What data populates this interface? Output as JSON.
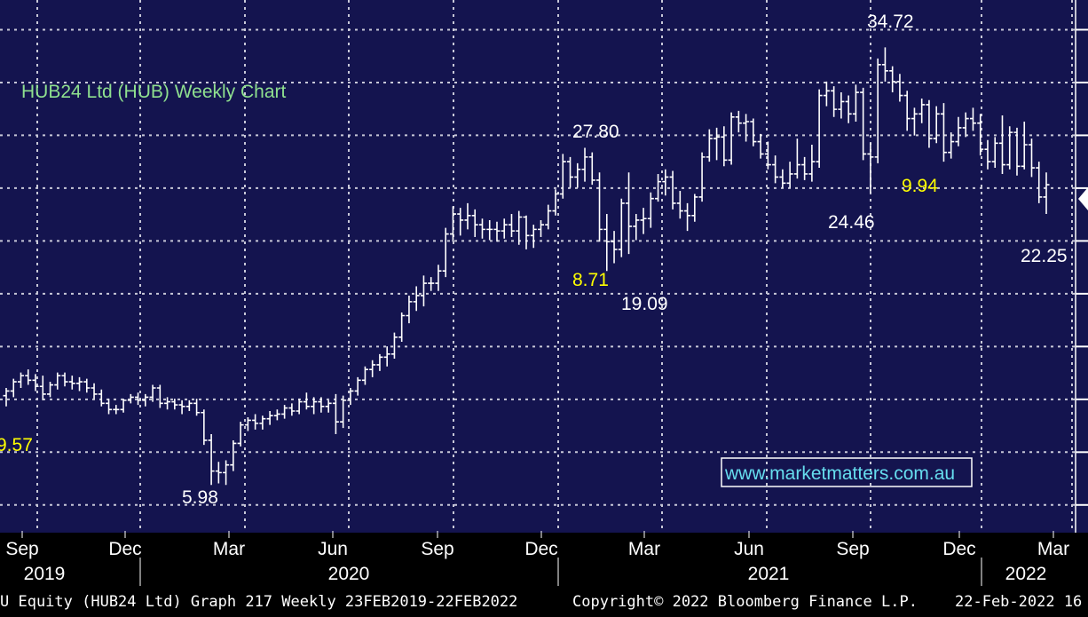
{
  "chart_data": {
    "type": "ohlc",
    "title": "HUB24 Ltd (HUB) Weekly Chart",
    "x_axis": {
      "months": [
        "Sep",
        "Dec",
        "Mar",
        "Jun",
        "Sep",
        "Dec",
        "Mar",
        "Jun",
        "Sep",
        "Dec",
        "Mar"
      ],
      "years": [
        "2019",
        "2020",
        "2021",
        "2022"
      ]
    },
    "y_axis": {
      "range": [
        3.2,
        37.8
      ],
      "gridlines": [
        5,
        8.43,
        11.86,
        15.29,
        18.72,
        22.15,
        25.58,
        29.01,
        32.44,
        35.87
      ],
      "labels_visible": false
    },
    "grid": true,
    "series": [
      {
        "ohlc": [
          [
            12.1,
            12.6,
            11.4,
            12.4
          ],
          [
            12.4,
            13.2,
            12.0,
            13.0
          ],
          [
            13.0,
            13.6,
            12.6,
            13.4
          ],
          [
            13.4,
            13.8,
            12.8,
            13.1
          ],
          [
            13.1,
            13.5,
            12.4,
            12.7
          ],
          [
            12.7,
            13.4,
            11.8,
            12.2
          ],
          [
            12.2,
            13.0,
            12.0,
            12.8
          ],
          [
            12.8,
            13.6,
            12.5,
            13.4
          ],
          [
            13.4,
            13.6,
            12.7,
            13.0
          ],
          [
            13.0,
            13.4,
            12.5,
            12.9
          ],
          [
            12.9,
            13.3,
            12.4,
            13.0
          ],
          [
            13.0,
            13.2,
            12.3,
            12.6
          ],
          [
            12.6,
            12.9,
            11.9,
            12.2
          ],
          [
            12.2,
            12.5,
            11.4,
            11.6
          ],
          [
            11.6,
            11.9,
            10.9,
            11.2
          ],
          [
            11.2,
            11.5,
            10.9,
            11.2
          ],
          [
            11.2,
            11.9,
            11.0,
            11.8
          ],
          [
            11.8,
            12.2,
            11.6,
            12.0
          ],
          [
            12.0,
            12.3,
            11.5,
            11.8
          ],
          [
            11.8,
            12.2,
            11.4,
            12.0
          ],
          [
            12.0,
            12.8,
            11.7,
            12.6
          ],
          [
            12.6,
            12.8,
            11.3,
            11.6
          ],
          [
            11.6,
            12.0,
            11.2,
            11.7
          ],
          [
            11.7,
            11.9,
            11.2,
            11.5
          ],
          [
            11.5,
            11.8,
            10.9,
            11.4
          ],
          [
            11.4,
            11.8,
            11.1,
            11.6
          ],
          [
            11.6,
            11.9,
            10.8,
            11.0
          ],
          [
            11.0,
            11.2,
            8.9,
            9.2
          ],
          [
            9.2,
            9.6,
            6.3,
            7.2
          ],
          [
            7.2,
            7.8,
            6.4,
            7.1
          ],
          [
            7.1,
            7.9,
            6.3,
            7.6
          ],
          [
            7.6,
            9.2,
            7.2,
            9.0
          ],
          [
            9.0,
            10.4,
            8.8,
            10.2
          ],
          [
            10.2,
            10.7,
            9.8,
            10.5
          ],
          [
            10.5,
            10.9,
            9.9,
            10.3
          ],
          [
            10.3,
            10.8,
            9.9,
            10.6
          ],
          [
            10.6,
            11.1,
            10.2,
            10.8
          ],
          [
            10.8,
            11.2,
            10.5,
            10.9
          ],
          [
            10.9,
            11.5,
            10.6,
            11.3
          ],
          [
            11.3,
            11.6,
            10.8,
            11.1
          ],
          [
            11.1,
            11.9,
            10.9,
            11.7
          ],
          [
            11.7,
            12.3,
            11.2,
            11.4
          ],
          [
            11.4,
            12.0,
            10.9,
            11.7
          ],
          [
            11.7,
            12.0,
            11.0,
            11.4
          ],
          [
            11.4,
            11.8,
            11.0,
            11.6
          ],
          [
            11.6,
            12.2,
            9.6,
            10.4
          ],
          [
            10.4,
            12.1,
            10.0,
            11.8
          ],
          [
            11.8,
            12.6,
            11.5,
            12.4
          ],
          [
            12.4,
            13.3,
            12.1,
            13.1
          ],
          [
            13.1,
            14.0,
            12.8,
            13.8
          ],
          [
            13.8,
            14.4,
            13.3,
            14.1
          ],
          [
            14.1,
            14.8,
            13.7,
            14.6
          ],
          [
            14.6,
            15.3,
            14.0,
            14.8
          ],
          [
            14.8,
            16.2,
            14.5,
            15.9
          ],
          [
            15.9,
            17.5,
            15.6,
            17.3
          ],
          [
            17.3,
            18.6,
            16.8,
            18.2
          ],
          [
            18.2,
            19.2,
            17.6,
            18.6
          ],
          [
            18.6,
            19.9,
            17.9,
            19.4
          ],
          [
            19.4,
            19.8,
            18.9,
            19.4
          ],
          [
            19.4,
            20.6,
            18.9,
            20.2
          ],
          [
            20.2,
            23.0,
            19.8,
            22.6
          ],
          [
            22.6,
            24.4,
            22.1,
            23.9
          ],
          [
            23.9,
            24.3,
            22.5,
            23.5
          ],
          [
            23.5,
            24.6,
            22.9,
            23.8
          ],
          [
            23.8,
            24.2,
            22.4,
            23.2
          ],
          [
            23.2,
            23.6,
            22.3,
            22.9
          ],
          [
            22.9,
            23.5,
            22.2,
            22.9
          ],
          [
            22.9,
            23.4,
            22.1,
            22.8
          ],
          [
            22.8,
            23.6,
            22.3,
            23.2
          ],
          [
            23.2,
            23.9,
            22.4,
            22.8
          ],
          [
            22.8,
            24.1,
            21.9,
            23.7
          ],
          [
            23.7,
            23.8,
            21.6,
            22.5
          ],
          [
            22.5,
            23.2,
            21.7,
            22.9
          ],
          [
            22.9,
            23.5,
            22.4,
            23.2
          ],
          [
            23.2,
            24.5,
            22.9,
            24.1
          ],
          [
            24.1,
            25.5,
            23.8,
            25.2
          ],
          [
            25.2,
            27.8,
            24.9,
            27.3
          ],
          [
            27.3,
            27.6,
            25.6,
            26.3
          ],
          [
            26.3,
            27.2,
            25.6,
            26.8
          ],
          [
            26.8,
            28.2,
            26.0,
            27.6
          ],
          [
            27.6,
            27.9,
            25.8,
            26.1
          ],
          [
            26.1,
            26.6,
            22.1,
            22.9
          ],
          [
            22.9,
            23.9,
            20.2,
            22.1
          ],
          [
            22.1,
            22.8,
            20.7,
            21.6
          ],
          [
            21.6,
            24.9,
            21.1,
            24.6
          ],
          [
            24.6,
            26.6,
            21.3,
            23.1
          ],
          [
            23.1,
            23.9,
            22.2,
            23.5
          ],
          [
            23.5,
            24.3,
            22.6,
            23.6
          ],
          [
            23.6,
            25.3,
            23.0,
            24.9
          ],
          [
            24.9,
            26.5,
            24.7,
            26.0
          ],
          [
            26.0,
            26.8,
            25.1,
            26.3
          ],
          [
            26.3,
            26.7,
            24.2,
            24.6
          ],
          [
            24.6,
            25.4,
            23.6,
            24.1
          ],
          [
            24.1,
            24.6,
            22.8,
            23.8
          ],
          [
            23.8,
            25.2,
            23.4,
            25.0
          ],
          [
            25.0,
            27.9,
            24.7,
            27.6
          ],
          [
            27.6,
            29.4,
            27.3,
            28.8
          ],
          [
            28.8,
            29.5,
            27.4,
            28.9
          ],
          [
            28.9,
            29.6,
            27.0,
            27.4
          ],
          [
            27.4,
            30.5,
            27.1,
            30.2
          ],
          [
            30.2,
            30.6,
            29.2,
            29.8
          ],
          [
            29.8,
            30.4,
            28.6,
            29.9
          ],
          [
            29.9,
            30.1,
            28.3,
            28.6
          ],
          [
            28.6,
            29.1,
            27.5,
            27.8
          ],
          [
            27.8,
            28.6,
            26.8,
            27.1
          ],
          [
            27.1,
            27.7,
            25.9,
            26.3
          ],
          [
            26.3,
            26.8,
            25.6,
            25.9
          ],
          [
            25.9,
            27.3,
            25.6,
            26.5
          ],
          [
            26.5,
            28.8,
            26.2,
            27.1
          ],
          [
            27.1,
            27.6,
            26.1,
            26.5
          ],
          [
            26.5,
            28.4,
            26.0,
            27.3
          ],
          [
            27.3,
            32.0,
            26.9,
            31.6
          ],
          [
            31.6,
            32.5,
            30.9,
            31.9
          ],
          [
            31.9,
            32.2,
            30.2,
            30.7
          ],
          [
            30.7,
            31.8,
            30.1,
            31.2
          ],
          [
            31.2,
            31.6,
            29.8,
            30.4
          ],
          [
            30.4,
            32.3,
            29.9,
            31.8
          ],
          [
            31.8,
            32.1,
            27.4,
            27.8
          ],
          [
            27.8,
            28.5,
            25.3,
            27.6
          ],
          [
            27.6,
            34.0,
            27.2,
            33.6
          ],
          [
            33.6,
            34.72,
            32.5,
            33.2
          ],
          [
            33.2,
            33.5,
            31.8,
            32.5
          ],
          [
            32.5,
            33.0,
            31.2,
            31.6
          ],
          [
            31.6,
            31.9,
            29.3,
            30.1
          ],
          [
            30.1,
            30.8,
            29.0,
            30.4
          ],
          [
            30.4,
            31.4,
            29.8,
            31.0
          ],
          [
            31.0,
            31.3,
            28.2,
            28.8
          ],
          [
            28.8,
            30.9,
            28.5,
            30.4
          ],
          [
            30.4,
            31.1,
            27.3,
            27.9
          ],
          [
            27.9,
            29.2,
            27.5,
            28.6
          ],
          [
            28.6,
            30.2,
            28.3,
            29.5
          ],
          [
            29.5,
            30.5,
            28.9,
            30.1
          ],
          [
            30.1,
            30.8,
            29.3,
            29.8
          ],
          [
            29.8,
            30.4,
            27.7,
            28.1
          ],
          [
            28.1,
            28.7,
            26.8,
            27.3
          ],
          [
            27.3,
            28.9,
            26.9,
            28.5
          ],
          [
            28.5,
            30.3,
            26.5,
            27.1
          ],
          [
            27.1,
            29.6,
            26.8,
            29.2
          ],
          [
            29.2,
            29.5,
            26.4,
            27.0
          ],
          [
            27.0,
            29.9,
            26.8,
            28.4
          ],
          [
            28.4,
            28.8,
            26.3,
            26.9
          ],
          [
            26.9,
            27.3,
            24.6,
            25.0
          ],
          [
            25.0,
            26.6,
            23.9,
            25.8
          ]
        ]
      }
    ],
    "annotations": [
      {
        "text": "9.57",
        "color": "#ffff00"
      },
      {
        "text": "5.98",
        "color": "#ffffff"
      },
      {
        "text": "27.80",
        "color": "#ffffff"
      },
      {
        "text": "8.71",
        "color": "#ffff00"
      },
      {
        "text": "19.09",
        "color": "#ffffff"
      },
      {
        "text": "24.46",
        "color": "#ffffff"
      },
      {
        "text": "34.72",
        "color": "#ffffff"
      },
      {
        "text": "9.94",
        "color": "#ffff00"
      },
      {
        "text": "22.25",
        "color": "#ffffff"
      }
    ],
    "watermark": "www.marketmatters.com.au"
  },
  "footer": {
    "left": "U Equity (HUB24 Ltd) Graph 217  Weekly 23FEB2019-22FEB2022",
    "center": "Copyright© 2022 Bloomberg Finance L.P.",
    "right": "22-Feb-2022 16"
  },
  "colors": {
    "background": "#14144f",
    "title": "#8fe08f",
    "price": "#ffffff",
    "highlight": "#ffff00",
    "watermark": "#66ddee",
    "axis_text": "#ffffff",
    "footer_text": "#ffffff"
  }
}
